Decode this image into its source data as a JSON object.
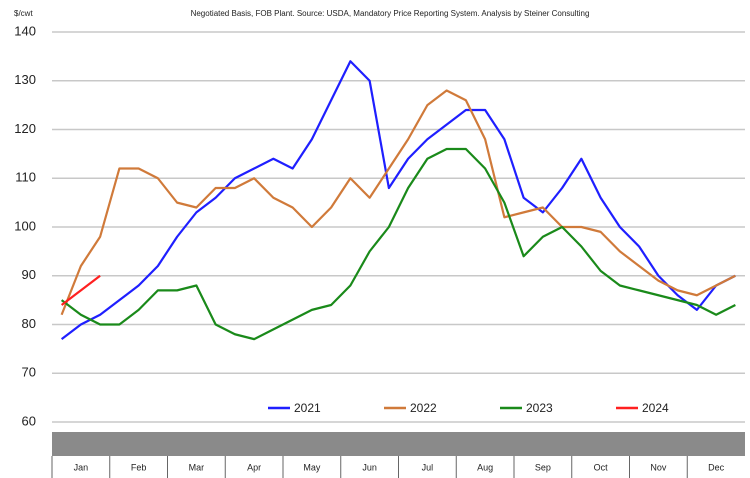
{
  "chart_data": {
    "type": "line",
    "y_unit": "$/cwt",
    "subtitle": "Negotiated Basis, FOB Plant. Source: USDA, Mandatory Price Reporting System. Analysis by Steiner Consulting",
    "categories": [
      null,
      "Jan",
      null,
      null,
      "Feb",
      null,
      null,
      "Mar",
      null,
      null,
      "Apr",
      null,
      null,
      "May",
      null,
      null,
      "Jun",
      null,
      null,
      "Jul",
      null,
      null,
      "Aug",
      null,
      null,
      "Sep",
      null,
      null,
      "Oct",
      null,
      null,
      "Nov",
      null,
      null,
      "Dec",
      null
    ],
    "series": [
      {
        "name": "2021",
        "color": "#1f1fff",
        "values": [
          77,
          80,
          82,
          85,
          88,
          92,
          98,
          103,
          106,
          110,
          112,
          114,
          112,
          118,
          126,
          134,
          130,
          108,
          114,
          118,
          121,
          124,
          124,
          118,
          106,
          103,
          108,
          114,
          106,
          100,
          96,
          90,
          86,
          83,
          88,
          90
        ]
      },
      {
        "name": "2022",
        "color": "#d07a3a",
        "values": [
          82,
          92,
          98,
          112,
          112,
          110,
          105,
          104,
          108,
          108,
          110,
          106,
          104,
          100,
          104,
          110,
          106,
          112,
          118,
          125,
          128,
          126,
          118,
          102,
          103,
          104,
          100,
          100,
          99,
          95,
          92,
          89,
          87,
          86,
          88,
          90
        ]
      },
      {
        "name": "2023",
        "color": "#1a8a1a",
        "values": [
          85,
          82,
          80,
          80,
          83,
          87,
          87,
          88,
          80,
          78,
          77,
          79,
          81,
          83,
          84,
          88,
          95,
          100,
          108,
          114,
          116,
          116,
          112,
          105,
          94,
          98,
          100,
          96,
          91,
          88,
          87,
          86,
          85,
          84,
          82,
          84
        ]
      },
      {
        "name": "2024",
        "color": "#ff2020",
        "values": [
          84,
          87,
          90,
          null,
          null,
          null,
          null,
          null,
          null,
          null,
          null,
          null,
          null,
          null,
          null,
          null,
          null,
          null,
          null,
          null,
          null,
          null,
          null,
          null,
          null,
          null,
          null,
          null,
          null,
          null,
          null,
          null,
          null,
          null,
          null,
          null
        ]
      }
    ],
    "ylim": [
      60,
      140
    ],
    "yticks": [
      60,
      70,
      80,
      90,
      100,
      110,
      120,
      130,
      140
    ],
    "grid": true
  }
}
